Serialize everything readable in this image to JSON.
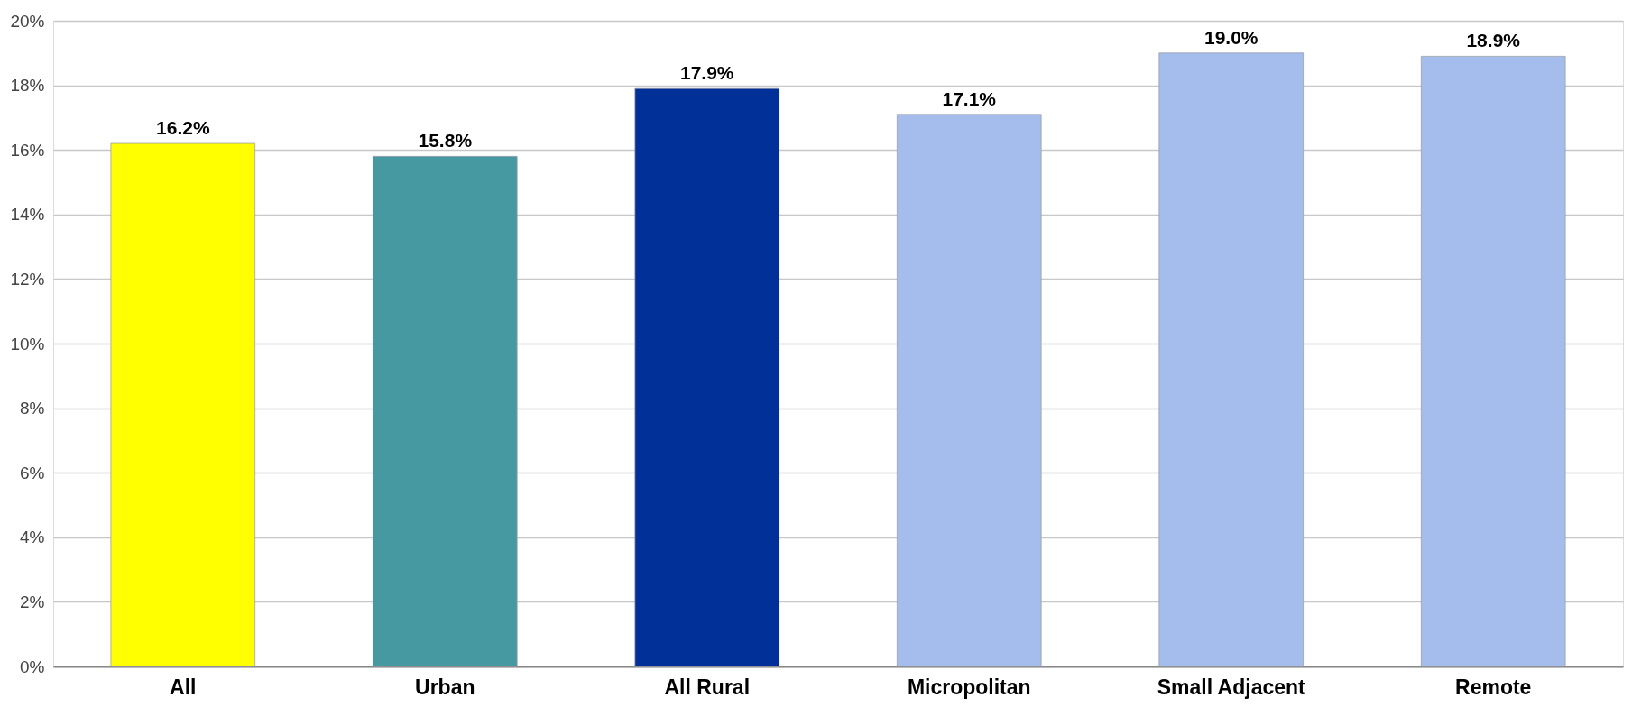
{
  "chart_data": {
    "type": "bar",
    "categories": [
      "All",
      "Urban",
      "All Rural",
      "Micropolitan",
      "Small Adjacent",
      "Remote"
    ],
    "values": [
      16.2,
      15.8,
      17.9,
      17.1,
      19.0,
      18.9
    ],
    "colors": [
      "#ffff00",
      "#4699a0",
      "#023099",
      "#a4bdec",
      "#a4bdec",
      "#a4bdec"
    ],
    "value_labels": [
      "16.2%",
      "15.8%",
      "17.9%",
      "17.1%",
      "19.0%",
      "18.9%"
    ],
    "ylim": [
      0,
      20
    ],
    "yticks": [
      {
        "value": 0,
        "label": "0%"
      },
      {
        "value": 2,
        "label": "2%"
      },
      {
        "value": 4,
        "label": "4%"
      },
      {
        "value": 6,
        "label": "6%"
      },
      {
        "value": 8,
        "label": "8%"
      },
      {
        "value": 10,
        "label": "10%"
      },
      {
        "value": 12,
        "label": "12%"
      },
      {
        "value": 14,
        "label": "14%"
      },
      {
        "value": 16,
        "label": "16%"
      },
      {
        "value": 18,
        "label": "18%"
      },
      {
        "value": 20,
        "label": "20%"
      }
    ],
    "grid": "y"
  }
}
